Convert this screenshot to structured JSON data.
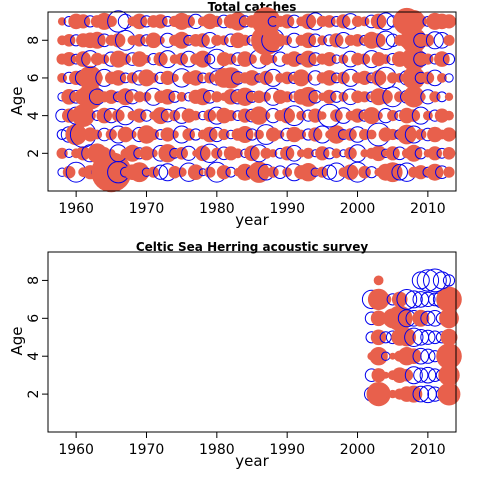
{
  "chart_data": [
    {
      "type": "scatter",
      "subtype": "bubble",
      "title": "Total catches",
      "xlabel": "year",
      "ylabel": "Age",
      "xlim": [
        1956,
        2014
      ],
      "ylim": [
        0,
        9.5
      ],
      "xticks": [
        1960,
        1970,
        1980,
        1990,
        2000,
        2010
      ],
      "yticks": [
        2,
        4,
        6,
        8
      ],
      "legend": "none",
      "colors": {
        "positive": "#e8604c",
        "negative": "#0000ee"
      },
      "x": [
        1958,
        1959,
        1960,
        1961,
        1962,
        1963,
        1964,
        1965,
        1966,
        1967,
        1968,
        1969,
        1970,
        1971,
        1972,
        1973,
        1974,
        1975,
        1976,
        1977,
        1978,
        1979,
        1980,
        1981,
        1982,
        1983,
        1984,
        1985,
        1986,
        1987,
        1988,
        1989,
        1990,
        1991,
        1992,
        1993,
        1994,
        1995,
        1996,
        1997,
        1998,
        1999,
        2000,
        2001,
        2002,
        2003,
        2004,
        2005,
        2006,
        2007,
        2008,
        2009,
        2010,
        2011,
        2012,
        2013
      ],
      "ages": [
        1,
        2,
        3,
        4,
        5,
        6,
        7,
        8,
        9
      ],
      "residuals": [
        [
          -0.4,
          0.7,
          -1.2,
          0.5,
          0.8,
          -0.6,
          1.1,
          2.6,
          -1.3,
          -0.5,
          0.9,
          1.2,
          -0.4,
          0.6,
          -0.8,
          -1.0,
          0.7,
          0.5,
          -1.1,
          0.9,
          -0.3,
          0.6,
          -1.2,
          0.8,
          -0.5,
          0.4,
          1.0,
          -0.6,
          1.3,
          -0.9,
          0.6,
          -0.7,
          0.5,
          -1.0,
          0.8,
          1.1,
          -0.4,
          0.6,
          -0.8,
          -1.1,
          0.5,
          0.9,
          -1.2,
          0.7,
          -0.6,
          0.4,
          1.0,
          1.2,
          -0.9,
          -1.1,
          0.6,
          0.8,
          -0.5,
          1.0,
          -0.7,
          0.6
        ],
        [
          0.6,
          -0.4,
          0.5,
          0.8,
          -1.0,
          1.2,
          0.7,
          0.4,
          -1.0,
          0.5,
          1.0,
          -0.6,
          0.8,
          0.4,
          -0.9,
          1.1,
          -0.5,
          0.7,
          -0.8,
          0.3,
          0.9,
          -1.1,
          0.6,
          -0.7,
          0.8,
          0.5,
          -0.4,
          0.9,
          -1.0,
          0.6,
          0.4,
          -0.5,
          0.8,
          -0.9,
          0.4,
          0.6,
          -0.3,
          0.8,
          -0.6,
          0.5,
          -0.3,
          0.7,
          -1.0,
          0.4,
          0.6,
          0.9,
          -0.4,
          0.8,
          -0.7,
          0.5,
          1.0,
          -0.6,
          0.4,
          0.8,
          -0.5,
          0.7
        ],
        [
          -0.5,
          -0.9,
          1.3,
          -1.6,
          0.8,
          0.5,
          -0.7,
          0.6,
          -1.0,
          0.9,
          0.4,
          -0.8,
          1.1,
          0.6,
          -0.5,
          0.8,
          0.4,
          -1.0,
          0.7,
          -0.6,
          0.5,
          0.9,
          -0.8,
          0.6,
          -0.4,
          0.7,
          1.0,
          -0.6,
          0.5,
          -1.2,
          0.8,
          0.4,
          -0.7,
          0.9,
          0.5,
          -0.6,
          0.8,
          -1.0,
          0.4,
          1.1,
          -0.5,
          0.7,
          -0.9,
          0.6,
          0.5,
          -1.4,
          0.8,
          0.6,
          -0.5,
          1.2,
          -1.0,
          0.6,
          -0.7,
          0.9,
          0.5,
          0.8
        ],
        [
          -0.7,
          0.8,
          -1.0,
          1.4,
          0.6,
          -0.5,
          0.9,
          -0.8,
          0.7,
          -1.1,
          0.5,
          0.8,
          -0.6,
          0.4,
          1.0,
          -0.7,
          0.6,
          -0.9,
          0.8,
          0.5,
          -0.4,
          0.7,
          -1.0,
          0.9,
          0.6,
          -0.5,
          0.8,
          -0.7,
          1.1,
          0.4,
          -0.8,
          0.6,
          0.9,
          -1.2,
          0.5,
          -0.6,
          0.8,
          0.4,
          -1.4,
          0.7,
          -0.9,
          0.5,
          0.8,
          -0.6,
          1.0,
          0.4,
          -0.8,
          0.6,
          -0.5,
          0.9,
          0.7,
          -1.0,
          0.5,
          -0.6,
          0.8,
          0.5
        ],
        [
          -0.4,
          0.9,
          -0.7,
          1.0,
          1.6,
          -0.9,
          0.6,
          0.8,
          -0.5,
          1.0,
          -0.8,
          0.6,
          0.5,
          -1.0,
          0.7,
          0.9,
          -0.6,
          0.5,
          -0.4,
          0.8,
          1.0,
          -0.7,
          0.6,
          0.4,
          0.9,
          -0.8,
          1.1,
          -0.6,
          0.7,
          0.5,
          -1.0,
          0.8,
          0.6,
          -0.5,
          0.9,
          1.2,
          -0.7,
          0.4,
          0.8,
          -0.6,
          0.5,
          -0.9,
          0.7,
          0.6,
          -0.5,
          1.0,
          0.8,
          -1.2,
          0.6,
          -0.7,
          1.3,
          0.5,
          -0.8,
          0.6,
          -0.5,
          0.4
        ],
        [
          0.5,
          -0.6,
          0.8,
          -0.9,
          1.5,
          0.6,
          -1.0,
          0.7,
          0.9,
          -0.5,
          0.6,
          -0.8,
          1.0,
          0.5,
          -0.6,
          0.8,
          0.4,
          -1.1,
          0.7,
          0.9,
          -0.5,
          0.6,
          -0.8,
          1.2,
          1.3,
          -0.7,
          0.6,
          0.9,
          -0.4,
          0.8,
          -1.0,
          0.5,
          0.7,
          -0.6,
          1.0,
          0.4,
          -0.8,
          0.6,
          0.9,
          -0.5,
          0.7,
          -1.0,
          0.6,
          0.8,
          -0.5,
          0.9,
          -1.3,
          0.6,
          0.5,
          -0.8,
          1.4,
          -0.6,
          0.7,
          -0.9,
          0.5,
          -0.4
        ],
        [
          0.6,
          0.8,
          -0.5,
          0.9,
          -1.0,
          0.7,
          0.5,
          -0.8,
          1.0,
          0.6,
          -0.7,
          0.9,
          0.4,
          -0.6,
          0.8,
          -1.0,
          0.5,
          0.7,
          -0.9,
          0.6,
          1.0,
          -0.5,
          -1.2,
          0.8,
          0.6,
          -0.7,
          0.9,
          0.5,
          -1.1,
          0.7,
          0.4,
          -0.8,
          0.6,
          0.9,
          -0.5,
          1.0,
          -0.7,
          0.6,
          0.8,
          -0.4,
          0.5,
          -0.9,
          0.7,
          0.6,
          -1.0,
          0.8,
          0.5,
          -0.6,
          0.9,
          0.7,
          1.5,
          -0.8,
          0.6,
          -0.5,
          0.9,
          -0.6
        ],
        [
          0.5,
          0.7,
          -0.6,
          0.8,
          0.9,
          1.0,
          -0.7,
          0.6,
          0.8,
          -1.2,
          0.5,
          0.7,
          -0.6,
          0.9,
          0.4,
          -0.8,
          0.6,
          1.0,
          -0.5,
          0.7,
          0.8,
          -0.9,
          0.6,
          0.5,
          -0.7,
          0.9,
          0.6,
          -0.5,
          0.8,
          1.9,
          -1.4,
          0.7,
          0.5,
          -0.8,
          0.6,
          0.9,
          -0.7,
          0.5,
          -0.6,
          0.8,
          -0.9,
          0.6,
          0.7,
          -0.5,
          1.0,
          0.8,
          -1.1,
          -0.7,
          0.6,
          0.9,
          1.6,
          -0.8,
          0.7,
          -1.0,
          -0.9,
          0.6
        ],
        [
          0.4,
          -0.5,
          0.9,
          0.8,
          -0.6,
          0.7,
          1.0,
          0.6,
          -1.3,
          -0.8,
          0.5,
          0.9,
          -0.6,
          0.7,
          0.8,
          -0.5,
          0.6,
          1.0,
          0.7,
          -0.8,
          0.5,
          0.9,
          0.6,
          -0.7,
          0.8,
          1.1,
          -0.6,
          0.7,
          0.9,
          1.8,
          -0.5,
          0.6,
          0.8,
          -0.7,
          0.5,
          0.9,
          -1.0,
          0.6,
          0.7,
          -0.5,
          0.8,
          -0.9,
          0.6,
          0.5,
          -0.7,
          0.9,
          -1.0,
          -0.6,
          0.8,
          1.7,
          1.4,
          0.7,
          -0.5,
          1.0,
          0.9,
          0.8
        ]
      ]
    },
    {
      "type": "scatter",
      "subtype": "bubble",
      "title": "Celtic Sea Herring acoustic survey",
      "xlabel": "year",
      "ylabel": "Age",
      "xlim": [
        1956,
        2014
      ],
      "ylim": [
        0,
        9.5
      ],
      "xticks": [
        1960,
        1970,
        1980,
        1990,
        2000,
        2010
      ],
      "yticks": [
        2,
        4,
        6,
        8
      ],
      "legend": "none",
      "colors": {
        "positive": "#e8604c",
        "negative": "#0000ee"
      },
      "x": [
        2002,
        2003,
        2004,
        2005,
        2006,
        2007,
        2008,
        2009,
        2010,
        2011,
        2012,
        2013
      ],
      "ages": [
        2,
        3,
        4,
        5,
        6,
        7,
        8
      ],
      "residuals": [
        [
          -0.8,
          1.5,
          0.3,
          0.4,
          0.6,
          0.9,
          1.0,
          -0.9,
          -1.0,
          -0.8,
          -0.6,
          1.4
        ],
        [
          -0.7,
          0.8,
          0.3,
          0.5,
          0.9,
          0.7,
          -1.0,
          -0.8,
          -0.9,
          -0.7,
          -0.6,
          1.3
        ],
        [
          0.4,
          1.1,
          -0.4,
          0.3,
          0.6,
          1.1,
          0.9,
          -0.9,
          -0.8,
          -0.6,
          -0.5,
          1.6
        ],
        [
          -0.6,
          0.9,
          -0.6,
          -0.7,
          1.0,
          1.1,
          -1.1,
          -0.9,
          -0.8,
          -0.7,
          -0.6,
          1.0
        ],
        [
          -0.7,
          0.9,
          0.5,
          1.2,
          1.6,
          -1.0,
          -0.9,
          1.0,
          -0.8,
          -0.9,
          -0.6,
          1.2
        ],
        [
          -1.1,
          1.3,
          0.6,
          -0.6,
          0.9,
          -1.2,
          -1.0,
          -0.9,
          -0.8,
          -0.7,
          -1.0,
          1.6
        ],
        [
          0,
          0.5,
          0,
          0,
          0,
          0,
          0,
          -1.0,
          -1.3,
          -1.4,
          -1.0,
          -0.6
        ]
      ]
    }
  ]
}
